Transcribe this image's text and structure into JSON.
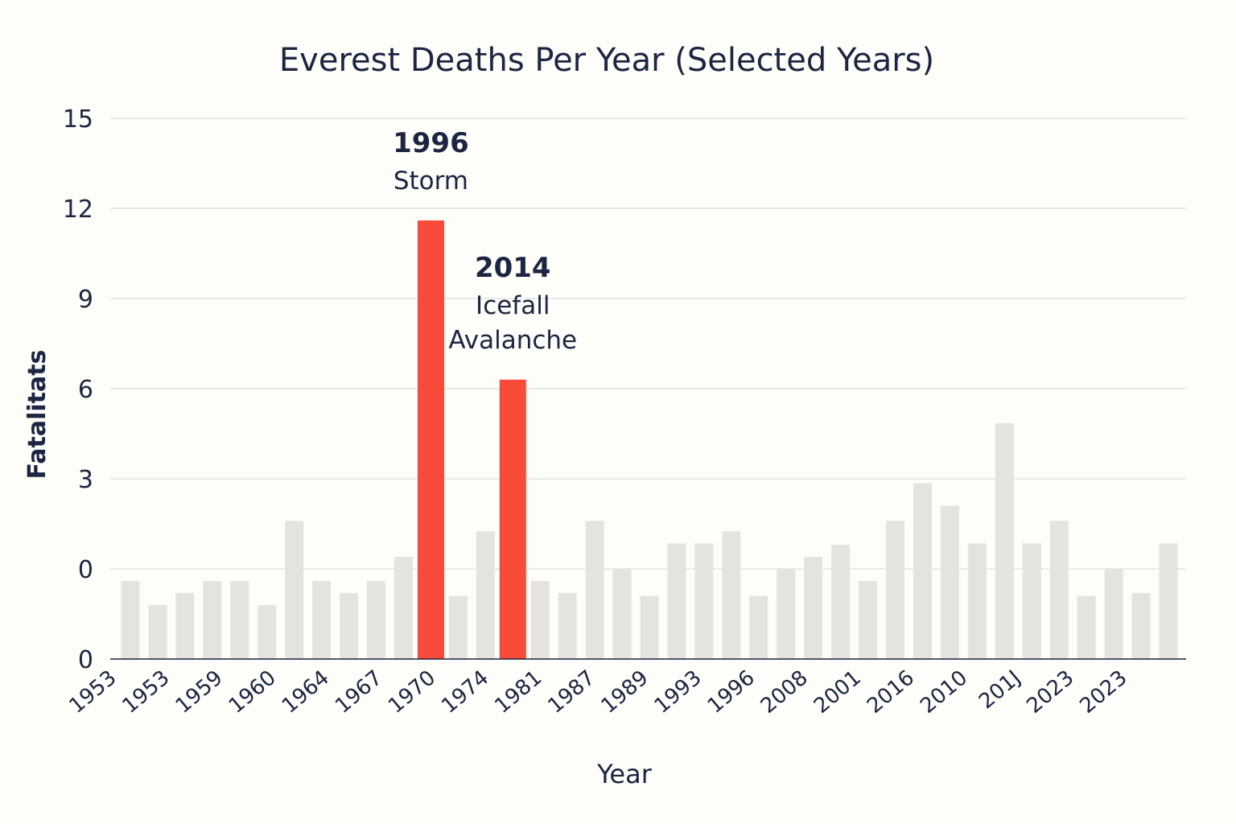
{
  "chart_data": {
    "type": "bar",
    "title": "Everest Deaths Per Year (Selected Years)",
    "xlabel": "Year",
    "ylabel": "Fatalitats",
    "y_tick_labels": [
      "0",
      "0",
      "3",
      "6",
      "9",
      "12",
      "15"
    ],
    "x_tick_labels": [
      "1953",
      "1953",
      "1959",
      "1960",
      "1964",
      "1967",
      "1970",
      "1974",
      "1981",
      "1987",
      "1989",
      "1993",
      "1996",
      "2008",
      "2001",
      "2016",
      "2010",
      "201J",
      "2023",
      "2023"
    ],
    "ylim": [
      -3,
      15
    ],
    "grid": true,
    "series": [
      {
        "values": [
          -0.4,
          -1.2,
          -0.8,
          -0.4,
          -0.4,
          -1.2,
          1.6,
          -0.4,
          -0.8,
          -0.4,
          0.4,
          11.6,
          -0.9,
          1.25,
          6.3,
          -0.4,
          -0.8,
          1.6,
          0.0,
          -0.9,
          0.85,
          0.85,
          1.25,
          -0.9,
          0.0,
          0.4,
          0.8,
          -0.4,
          1.6,
          2.85,
          2.1,
          0.85,
          4.85,
          0.85,
          1.6,
          -0.9,
          0.0,
          -0.8,
          0.85
        ],
        "highlight_index": [
          11,
          14
        ]
      }
    ],
    "colors": {
      "default": "#e4e3df",
      "highlight": "#fa4a3a"
    },
    "annotations": [
      {
        "year": "1996",
        "lines": [
          "Storm"
        ]
      },
      {
        "year": "2014",
        "lines": [
          "Icefall",
          "Avalanche"
        ]
      }
    ]
  }
}
